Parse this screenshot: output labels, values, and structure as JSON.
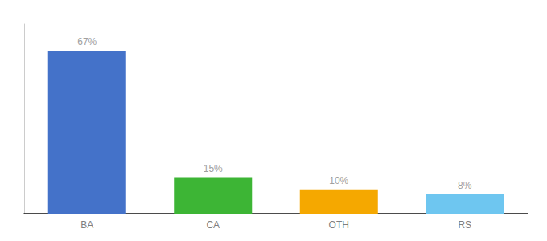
{
  "chart_data": {
    "type": "bar",
    "categories": [
      "BA",
      "CA",
      "OTH",
      "RS"
    ],
    "values": [
      67,
      15,
      10,
      8
    ],
    "value_labels": [
      "67%",
      "15%",
      "10%",
      "8%"
    ],
    "colors": [
      "#4472c9",
      "#3db535",
      "#f5a800",
      "#6ec6f0"
    ],
    "ylim": [
      0,
      78
    ],
    "grid": false,
    "data_labels": true,
    "tick_labels": "x"
  }
}
